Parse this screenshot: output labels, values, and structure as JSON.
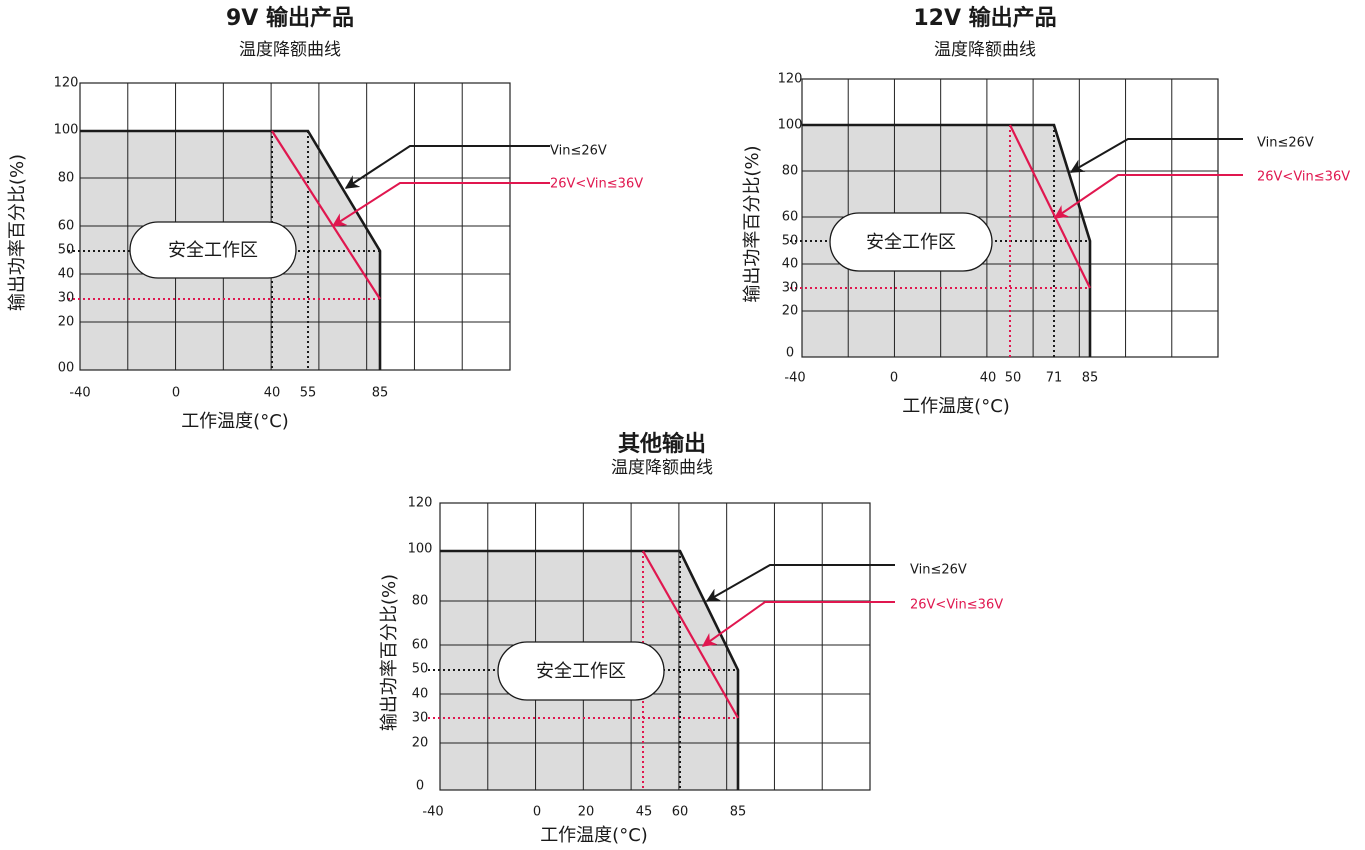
{
  "chart_data": [
    {
      "type": "line",
      "title": "9V 输出产品",
      "subtitle": "温度降额曲线",
      "xlabel": "工作温度(°C)",
      "ylabel": "输出功率百分比(%)",
      "y_tick_labels": [
        "120",
        "100",
        "80",
        "60",
        "50",
        "40",
        "30",
        "20",
        "00"
      ],
      "x_tick_labels": [
        "-40",
        "0",
        "40",
        "55",
        "85"
      ],
      "safe_zone_label": "安全工作区",
      "series": [
        {
          "name": "Vin≤26V",
          "color": "#1a1a1a",
          "points": [
            [
              -40,
              100
            ],
            [
              55,
              100
            ],
            [
              85,
              50
            ]
          ]
        },
        {
          "name": "26V<Vin≤36V",
          "color": "#e0174f",
          "points": [
            [
              -40,
              100
            ],
            [
              40,
              100
            ],
            [
              85,
              30
            ]
          ]
        }
      ]
    },
    {
      "type": "line",
      "title": "12V 输出产品",
      "subtitle": "温度降额曲线",
      "xlabel": "工作温度(°C)",
      "ylabel": "输出功率百分比(%)",
      "y_tick_labels": [
        "120",
        "100",
        "80",
        "60",
        "50",
        "40",
        "30",
        "20",
        "0"
      ],
      "x_tick_labels": [
        "-40",
        "0",
        "40",
        "50",
        "71",
        "85"
      ],
      "safe_zone_label": "安全工作区",
      "series": [
        {
          "name": "Vin≤26V",
          "color": "#1a1a1a",
          "points": [
            [
              -40,
              100
            ],
            [
              71,
              100
            ],
            [
              85,
              50
            ]
          ]
        },
        {
          "name": "26V<Vin≤36V",
          "color": "#e0174f",
          "points": [
            [
              -40,
              100
            ],
            [
              50,
              100
            ],
            [
              85,
              30
            ]
          ]
        }
      ]
    },
    {
      "type": "line",
      "title": "其他输出",
      "subtitle": "温度降额曲线",
      "xlabel": "工作温度(°C)",
      "ylabel": "输出功率百分比(%)",
      "y_tick_labels": [
        "120",
        "100",
        "80",
        "60",
        "50",
        "40",
        "30",
        "20",
        "0"
      ],
      "x_tick_labels": [
        "-40",
        "0",
        "20",
        "45",
        "60",
        "85"
      ],
      "safe_zone_label": "安全工作区",
      "series": [
        {
          "name": "Vin≤26V",
          "color": "#1a1a1a",
          "points": [
            [
              -40,
              100
            ],
            [
              60,
              100
            ],
            [
              85,
              50
            ]
          ]
        },
        {
          "name": "26V<Vin≤36V",
          "color": "#e0174f",
          "points": [
            [
              -40,
              100
            ],
            [
              45,
              100
            ],
            [
              85,
              30
            ]
          ]
        }
      ]
    }
  ]
}
